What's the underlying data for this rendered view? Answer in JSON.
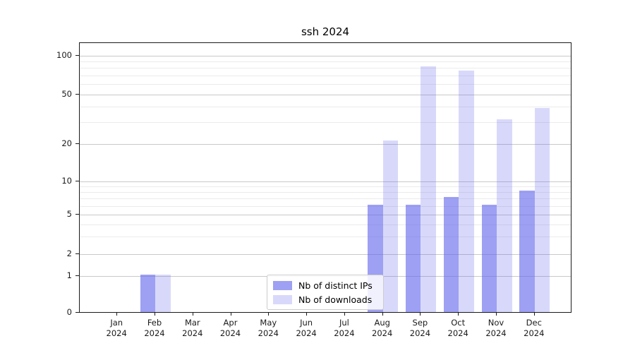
{
  "chart_data": {
    "type": "bar",
    "title": "ssh 2024",
    "categories": [
      "Jan",
      "Feb",
      "Mar",
      "Apr",
      "May",
      "Jun",
      "Jul",
      "Aug",
      "Sep",
      "Oct",
      "Nov",
      "Dec"
    ],
    "year": "2024",
    "series": [
      {
        "key": "distinct-ips",
        "name": "Nb of distinct IPs",
        "color": "rgba(98,102,236,0.62)",
        "values": [
          0,
          1,
          0,
          0,
          0,
          0,
          0,
          6,
          6,
          7,
          6,
          8
        ]
      },
      {
        "key": "downloads",
        "name": "Nb of downloads",
        "color": "rgba(98,102,236,0.25)",
        "values": [
          0,
          1,
          0,
          0,
          0,
          0,
          0,
          21,
          80,
          75,
          31,
          38
        ]
      }
    ],
    "yscale": "symlog",
    "ylim": [
      0,
      125
    ],
    "yticks": [
      0,
      1,
      2,
      5,
      10,
      20,
      50,
      100
    ],
    "minor_gridlines": [
      3,
      4,
      6,
      7,
      8,
      9,
      30,
      40,
      60,
      70,
      80,
      90
    ],
    "grid": true,
    "legend_position": "lower center"
  }
}
